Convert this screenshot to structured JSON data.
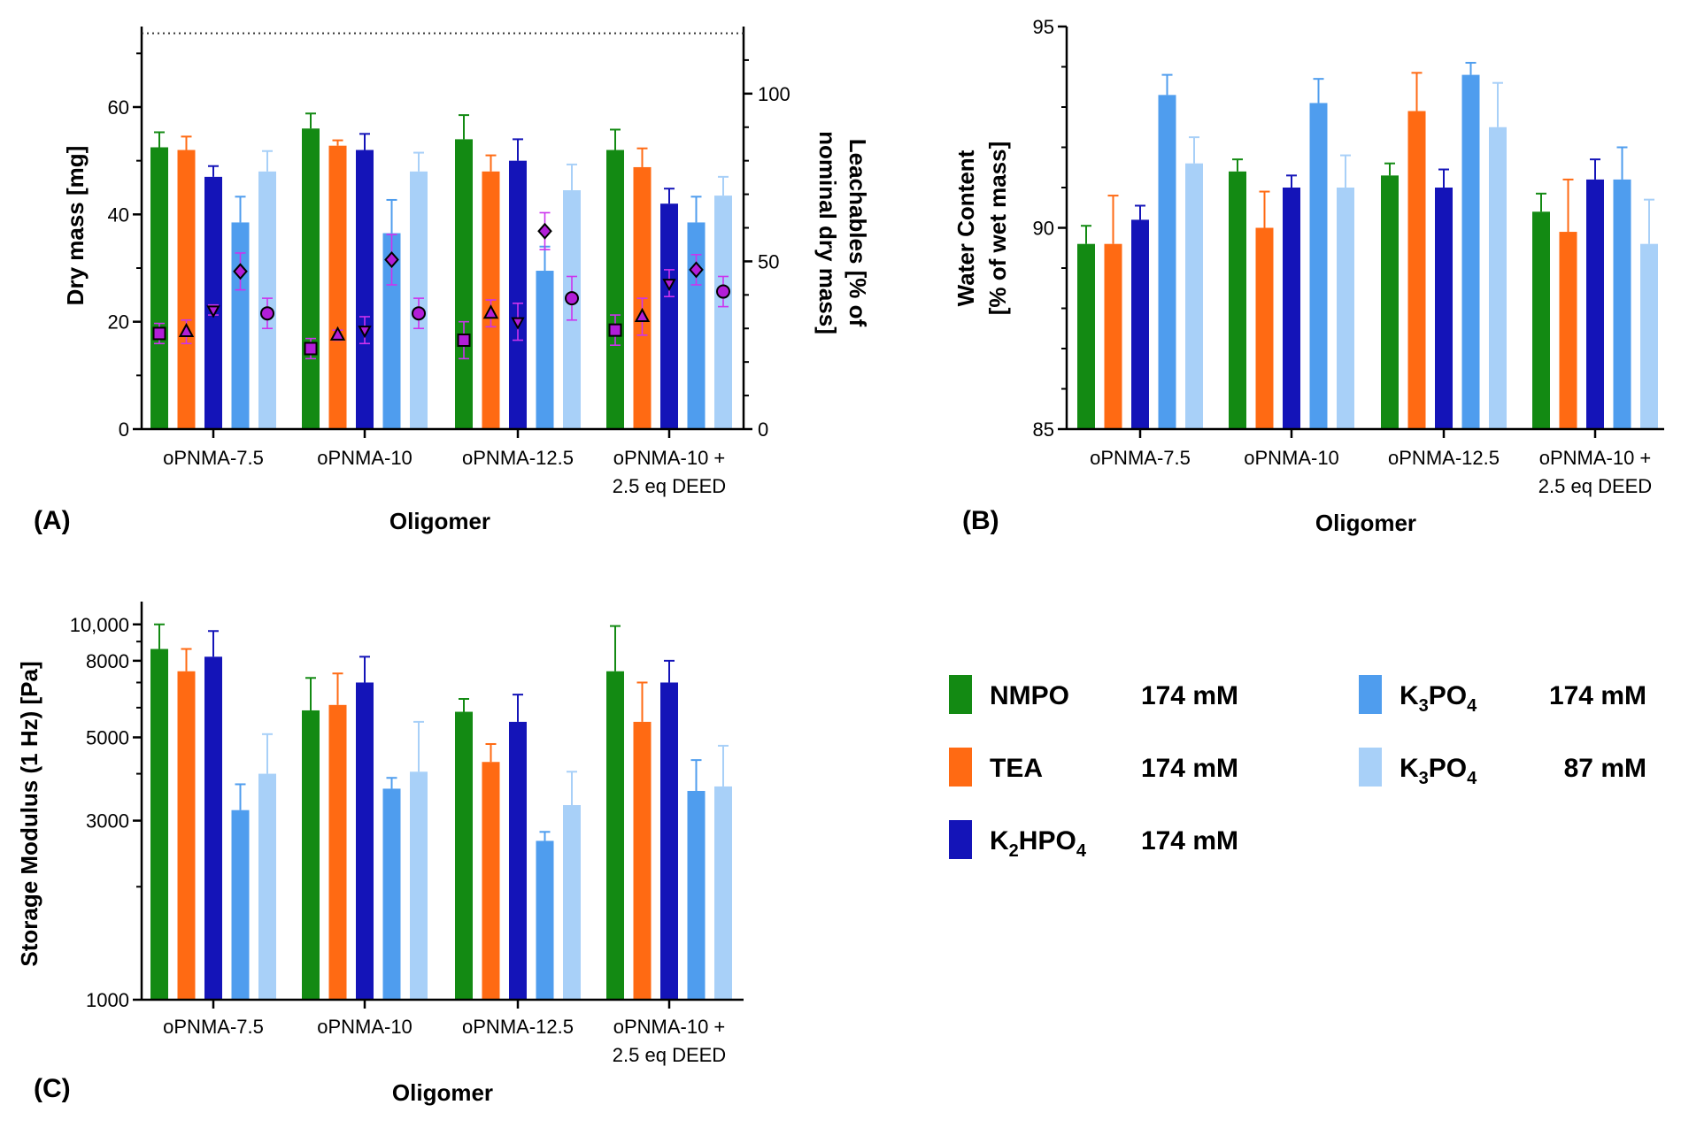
{
  "colors": {
    "NMPO": "#138a13",
    "TEA": "#ff6a13",
    "K2HPO4": "#1414b8",
    "K3PO4_174": "#4f9dee",
    "K3PO4_87": "#a8d0f8",
    "marker": "#b21ed8",
    "errorbar_marker": "#cc33ee"
  },
  "legend": [
    {
      "name": "NMPO",
      "sub": "",
      "tail": "",
      "conc": "174 mM",
      "color_key": "NMPO"
    },
    {
      "name": "TEA",
      "sub": "",
      "tail": "",
      "conc": "174 mM",
      "color_key": "TEA"
    },
    {
      "name": "K",
      "sub": "2",
      "mid": "HPO",
      "sub2": "4",
      "conc": "174 mM",
      "color_key": "K2HPO4"
    },
    {
      "name": "K",
      "sub": "3",
      "mid": "PO",
      "sub2": "4",
      "conc": "174 mM",
      "color_key": "K3PO4_174"
    },
    {
      "name": "K",
      "sub": "3",
      "mid": "PO",
      "sub2": "4",
      "conc": "87 mM",
      "color_key": "K3PO4_87"
    }
  ],
  "chart_data": [
    {
      "panel": "(A)",
      "type": "bar",
      "xlabel": "Oligomer",
      "ylabel": "Dry mass [mg]",
      "y2label_line1": "Leachables [% of",
      "y2label_line2": "nominal dry mass]",
      "categories": [
        [
          "oPNMA-7.5"
        ],
        [
          "oPNMA-10"
        ],
        [
          "oPNMA-12.5"
        ],
        [
          "oPNMA-10 +",
          "2.5 eq DEED"
        ]
      ],
      "ylim": [
        0,
        75
      ],
      "yticks": [
        0,
        20,
        40,
        60
      ],
      "y2lim": [
        0,
        120
      ],
      "y2ticks": [
        0,
        50,
        100
      ],
      "reference_line": {
        "axis": "y2",
        "value": 118,
        "style": "dotted"
      },
      "series": [
        {
          "name": "NMPO 174 mM",
          "color_key": "NMPO",
          "values": [
            52.5,
            56.0,
            54.0,
            52.0
          ],
          "errors": [
            2.8,
            2.8,
            4.5,
            3.8
          ]
        },
        {
          "name": "TEA 174 mM",
          "color_key": "TEA",
          "values": [
            52.0,
            52.8,
            48.0,
            48.8
          ],
          "errors": [
            2.5,
            1.0,
            3.0,
            3.5
          ]
        },
        {
          "name": "K2HPO4 174 mM",
          "color_key": "K2HPO4",
          "values": [
            47.0,
            52.0,
            50.0,
            42.0
          ],
          "errors": [
            2.0,
            3.0,
            4.0,
            2.8
          ]
        },
        {
          "name": "K3PO4 174 mM",
          "color_key": "K3PO4_174",
          "values": [
            38.5,
            36.5,
            29.5,
            38.5
          ],
          "errors": [
            4.8,
            6.2,
            4.5,
            4.8
          ]
        },
        {
          "name": "K3PO4 87 mM",
          "color_key": "K3PO4_87",
          "values": [
            48.0,
            48.0,
            44.5,
            43.5
          ],
          "errors": [
            3.8,
            3.5,
            4.8,
            3.5
          ]
        }
      ],
      "leachables": [
        {
          "marker": "square",
          "values": [
            28.5,
            24.0,
            26.5,
            29.5
          ],
          "errors": [
            3.0,
            3.0,
            5.5,
            4.5
          ]
        },
        {
          "marker": "triangle-up",
          "values": [
            29.0,
            28.0,
            34.5,
            33.5
          ],
          "errors": [
            3.5,
            1.5,
            4.0,
            5.5
          ]
        },
        {
          "marker": "triangle-down",
          "values": [
            35.5,
            29.5,
            32.0,
            43.5
          ],
          "errors": [
            1.5,
            4.0,
            5.5,
            4.0
          ]
        },
        {
          "marker": "diamond",
          "values": [
            47.0,
            50.5,
            59.0,
            47.5
          ],
          "errors": [
            5.5,
            7.5,
            5.5,
            4.5
          ]
        },
        {
          "marker": "circle",
          "values": [
            34.5,
            34.5,
            39.0,
            41.0
          ],
          "errors": [
            4.5,
            4.5,
            6.5,
            4.5
          ]
        }
      ]
    },
    {
      "panel": "(B)",
      "type": "bar",
      "xlabel": "Oligomer",
      "ylabel_line1": "Water Content",
      "ylabel_line2": "[% of wet mass]",
      "categories": [
        [
          "oPNMA-7.5"
        ],
        [
          "oPNMA-10"
        ],
        [
          "oPNMA-12.5"
        ],
        [
          "oPNMA-10 +",
          "2.5 eq DEED"
        ]
      ],
      "ylim": [
        85,
        95
      ],
      "yticks": [
        85,
        90,
        95
      ],
      "series": [
        {
          "name": "NMPO 174 mM",
          "color_key": "NMPO",
          "values": [
            89.6,
            91.4,
            91.3,
            90.4
          ],
          "errors": [
            0.45,
            0.3,
            0.3,
            0.45
          ]
        },
        {
          "name": "TEA 174 mM",
          "color_key": "TEA",
          "values": [
            89.6,
            90.0,
            92.9,
            89.9
          ],
          "errors": [
            1.2,
            0.9,
            0.95,
            1.3
          ]
        },
        {
          "name": "K2HPO4 174 mM",
          "color_key": "K2HPO4",
          "values": [
            90.2,
            91.0,
            91.0,
            91.2
          ],
          "errors": [
            0.35,
            0.3,
            0.45,
            0.5
          ]
        },
        {
          "name": "K3PO4 174 mM",
          "color_key": "K3PO4_174",
          "values": [
            93.3,
            93.1,
            93.8,
            91.2
          ],
          "errors": [
            0.5,
            0.6,
            0.3,
            0.8
          ]
        },
        {
          "name": "K3PO4 87 mM",
          "color_key": "K3PO4_87",
          "values": [
            91.6,
            91.0,
            92.5,
            89.6
          ],
          "errors": [
            0.65,
            0.8,
            1.1,
            1.1
          ]
        }
      ]
    },
    {
      "panel": "(C)",
      "type": "bar",
      "scale": "log",
      "xlabel": "Oligomer",
      "ylabel": "Storage Modulus (1 Hz) [Pa]",
      "categories": [
        [
          "oPNMA-7.5"
        ],
        [
          "oPNMA-10"
        ],
        [
          "oPNMA-12.5"
        ],
        [
          "oPNMA-10 +",
          "2.5 eq DEED"
        ]
      ],
      "ylim": [
        1000,
        11500
      ],
      "yticks": [
        {
          "value": 1000,
          "label": "1000"
        },
        {
          "value": 3000,
          "label": "3000"
        },
        {
          "value": 5000,
          "label": "5000"
        },
        {
          "value": 8000,
          "label": "8000"
        },
        {
          "value": 10000,
          "label": "10,000"
        }
      ],
      "series": [
        {
          "name": "NMPO 174 mM",
          "color_key": "NMPO",
          "values": [
            8600,
            5900,
            5850,
            7500
          ],
          "errors": [
            1400,
            1300,
            480,
            2400
          ]
        },
        {
          "name": "TEA 174 mM",
          "color_key": "TEA",
          "values": [
            7500,
            6100,
            4300,
            5500
          ],
          "errors": [
            1100,
            1300,
            500,
            1500
          ]
        },
        {
          "name": "K2HPO4 174 mM",
          "color_key": "K2HPO4",
          "values": [
            8200,
            7000,
            5500,
            7000
          ],
          "errors": [
            1400,
            1200,
            1000,
            1000
          ]
        },
        {
          "name": "K3PO4 174 mM",
          "color_key": "K3PO4_174",
          "values": [
            3200,
            3650,
            2650,
            3600
          ],
          "errors": [
            550,
            250,
            150,
            750
          ]
        },
        {
          "name": "K3PO4 87 mM",
          "color_key": "K3PO4_87",
          "values": [
            4000,
            4050,
            3300,
            3700
          ],
          "errors": [
            1100,
            1450,
            750,
            1050
          ]
        }
      ]
    }
  ]
}
